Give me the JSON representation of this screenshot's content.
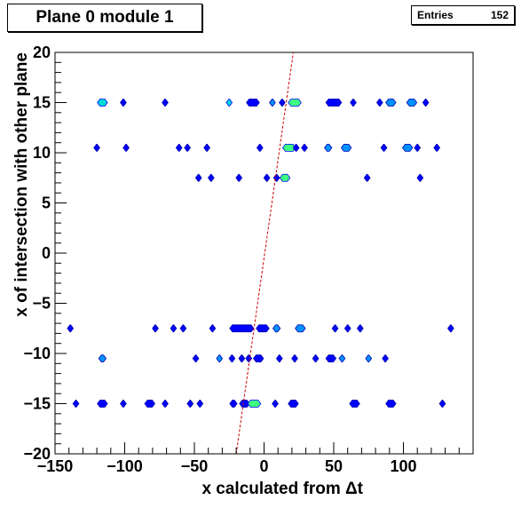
{
  "chart_data": {
    "type": "heatmap",
    "title": "Plane 0 module 1",
    "xlabel": "x calculated from Δt",
    "ylabel": "x of intersection with other plane",
    "xlim": [
      -150,
      150
    ],
    "ylim": [
      -20,
      20
    ],
    "x_ticks": [
      -150,
      -100,
      -50,
      0,
      50,
      100
    ],
    "y_ticks": [
      -20,
      -15,
      -10,
      -5,
      0,
      5,
      10,
      15,
      20
    ],
    "x_tick_labels": [
      "−150",
      "−100",
      "−50",
      "0",
      "50",
      "100"
    ],
    "y_tick_labels": [
      "−20",
      "−15",
      "−10",
      "−5",
      "0",
      "5",
      "10",
      "15",
      "20"
    ],
    "stats": {
      "label": "Entries",
      "value": "152"
    },
    "fit_line": {
      "color": "#cc0000",
      "style": "dashed",
      "points": [
        [
          -20,
          -20
        ],
        [
          21,
          20
        ]
      ]
    },
    "palette": [
      "#0000ff",
      "#0090ff",
      "#00d8d8",
      "#40ff80"
    ],
    "cells": [
      {
        "x": -116,
        "y": 15,
        "w": 6,
        "level": 2
      },
      {
        "x": -101,
        "y": 15,
        "w": 3,
        "level": 0
      },
      {
        "x": -71,
        "y": 15,
        "w": 3,
        "level": 0
      },
      {
        "x": -25,
        "y": 15,
        "w": 3,
        "level": 2
      },
      {
        "x": -8,
        "y": 15,
        "w": 8,
        "level": 0
      },
      {
        "x": 6,
        "y": 15,
        "w": 3,
        "level": 1
      },
      {
        "x": 13,
        "y": 15,
        "w": 3,
        "level": 0
      },
      {
        "x": 22,
        "y": 15,
        "w": 8,
        "level": 3
      },
      {
        "x": 50,
        "y": 15,
        "w": 10,
        "level": 0
      },
      {
        "x": 64,
        "y": 15,
        "w": 3,
        "level": 0
      },
      {
        "x": 83,
        "y": 15,
        "w": 3,
        "level": 0
      },
      {
        "x": 91,
        "y": 15,
        "w": 6,
        "level": 1
      },
      {
        "x": 106,
        "y": 15,
        "w": 6,
        "level": 1
      },
      {
        "x": 116,
        "y": 15,
        "w": 3,
        "level": 0
      },
      {
        "x": -120,
        "y": 10.5,
        "w": 3,
        "level": 0
      },
      {
        "x": -99,
        "y": 10.5,
        "w": 3,
        "level": 0
      },
      {
        "x": -61,
        "y": 10.5,
        "w": 3,
        "level": 0
      },
      {
        "x": -55,
        "y": 10.5,
        "w": 3,
        "level": 0
      },
      {
        "x": -41,
        "y": 10.5,
        "w": 3,
        "level": 0
      },
      {
        "x": -3,
        "y": 10.5,
        "w": 3,
        "level": 0
      },
      {
        "x": 18,
        "y": 10.5,
        "w": 8,
        "level": 3
      },
      {
        "x": 23,
        "y": 10.5,
        "w": 3,
        "level": 0
      },
      {
        "x": 29,
        "y": 10.5,
        "w": 3,
        "level": 0
      },
      {
        "x": 46,
        "y": 10.5,
        "w": 4,
        "level": 1
      },
      {
        "x": 59,
        "y": 10.5,
        "w": 6,
        "level": 1
      },
      {
        "x": 86,
        "y": 10.5,
        "w": 3,
        "level": 0
      },
      {
        "x": 103,
        "y": 10.5,
        "w": 6,
        "level": 1
      },
      {
        "x": 110,
        "y": 10.5,
        "w": 3,
        "level": 0
      },
      {
        "x": 124,
        "y": 10.5,
        "w": 3,
        "level": 0
      },
      {
        "x": -47,
        "y": 7.5,
        "w": 3,
        "level": 0
      },
      {
        "x": -38,
        "y": 7.5,
        "w": 3,
        "level": 0
      },
      {
        "x": -18,
        "y": 7.5,
        "w": 3,
        "level": 0
      },
      {
        "x": 2,
        "y": 7.5,
        "w": 3,
        "level": 0
      },
      {
        "x": 9,
        "y": 7.5,
        "w": 3,
        "level": 0
      },
      {
        "x": 15,
        "y": 7.5,
        "w": 6,
        "level": 3
      },
      {
        "x": 74,
        "y": 7.5,
        "w": 3,
        "level": 0
      },
      {
        "x": 112,
        "y": 7.5,
        "w": 3,
        "level": 0
      },
      {
        "x": -139,
        "y": -7.5,
        "w": 3,
        "level": 0
      },
      {
        "x": -78,
        "y": -7.5,
        "w": 3,
        "level": 0
      },
      {
        "x": -65,
        "y": -7.5,
        "w": 3,
        "level": 0
      },
      {
        "x": -58,
        "y": -7.5,
        "w": 3,
        "level": 0
      },
      {
        "x": -37,
        "y": -7.5,
        "w": 3,
        "level": 0
      },
      {
        "x": -16,
        "y": -7.5,
        "w": 16,
        "level": 0
      },
      {
        "x": -1,
        "y": -7.5,
        "w": 8,
        "level": 0
      },
      {
        "x": 9,
        "y": -7.5,
        "w": 4,
        "level": 1
      },
      {
        "x": 26,
        "y": -7.5,
        "w": 6,
        "level": 1
      },
      {
        "x": 51,
        "y": -7.5,
        "w": 3,
        "level": 0
      },
      {
        "x": 60,
        "y": -7.5,
        "w": 3,
        "level": 0
      },
      {
        "x": 69,
        "y": -7.5,
        "w": 3,
        "level": 0
      },
      {
        "x": 134,
        "y": -7.5,
        "w": 3,
        "level": 0
      },
      {
        "x": -116,
        "y": -10.5,
        "w": 4,
        "level": 1
      },
      {
        "x": -49,
        "y": -10.5,
        "w": 3,
        "level": 0
      },
      {
        "x": -32,
        "y": -10.5,
        "w": 3,
        "level": 1
      },
      {
        "x": -23,
        "y": -10.5,
        "w": 3,
        "level": 0
      },
      {
        "x": -16,
        "y": -10.5,
        "w": 3,
        "level": 0
      },
      {
        "x": -11,
        "y": -10.5,
        "w": 3,
        "level": 0
      },
      {
        "x": -4,
        "y": -10.5,
        "w": 6,
        "level": 0
      },
      {
        "x": 11,
        "y": -10.5,
        "w": 3,
        "level": 0
      },
      {
        "x": 22,
        "y": -10.5,
        "w": 3,
        "level": 0
      },
      {
        "x": 37,
        "y": -10.5,
        "w": 3,
        "level": 0
      },
      {
        "x": 48,
        "y": -10.5,
        "w": 6,
        "level": 0
      },
      {
        "x": 56,
        "y": -10.5,
        "w": 3,
        "level": 1
      },
      {
        "x": 75,
        "y": -10.5,
        "w": 3,
        "level": 1
      },
      {
        "x": 87,
        "y": -10.5,
        "w": 3,
        "level": 0
      },
      {
        "x": -135,
        "y": -15,
        "w": 3,
        "level": 0
      },
      {
        "x": -116,
        "y": -15,
        "w": 6,
        "level": 0
      },
      {
        "x": -101,
        "y": -15,
        "w": 3,
        "level": 0
      },
      {
        "x": -82,
        "y": -15,
        "w": 6,
        "level": 0
      },
      {
        "x": -71,
        "y": -15,
        "w": 3,
        "level": 0
      },
      {
        "x": -53,
        "y": -15,
        "w": 3,
        "level": 0
      },
      {
        "x": -46,
        "y": -15,
        "w": 3,
        "level": 0
      },
      {
        "x": -22,
        "y": -15,
        "w": 4,
        "level": 0
      },
      {
        "x": -14,
        "y": -15,
        "w": 6,
        "level": 0
      },
      {
        "x": -7,
        "y": -15,
        "w": 8,
        "level": 3
      },
      {
        "x": 8,
        "y": -15,
        "w": 3,
        "level": 0
      },
      {
        "x": 21,
        "y": -15,
        "w": 6,
        "level": 0
      },
      {
        "x": 65,
        "y": -15,
        "w": 6,
        "level": 0
      },
      {
        "x": 91,
        "y": -15,
        "w": 6,
        "level": 0
      },
      {
        "x": 128,
        "y": -15,
        "w": 3,
        "level": 0
      }
    ]
  }
}
